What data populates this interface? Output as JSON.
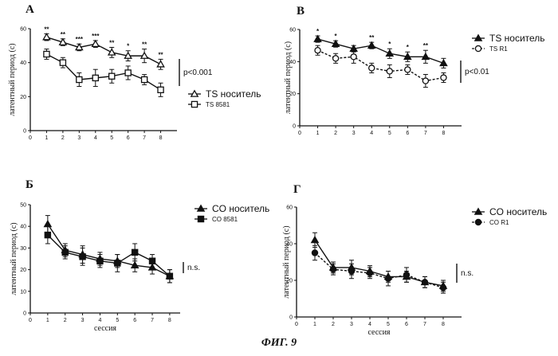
{
  "figure_caption": "ФИГ. 9",
  "chart_data": [
    {
      "id": "A",
      "type": "line",
      "panel_label": "A",
      "ylabel": "латентный период (с)",
      "xlabel": "",
      "xlim": [
        0,
        9
      ],
      "ylim": [
        0,
        60
      ],
      "x_ticks": [
        "0",
        "1",
        "2",
        "3",
        "4",
        "5",
        "6",
        "7",
        "8"
      ],
      "y_ticks": [
        "0",
        "20",
        "40",
        "60"
      ],
      "x": [
        1,
        2,
        3,
        4,
        5,
        6,
        7,
        8
      ],
      "series": [
        {
          "name": "TS носитель",
          "marker": "triangle-open",
          "dashed": false,
          "values": [
            55,
            52,
            49,
            51,
            46,
            44,
            44,
            39
          ],
          "errors": [
            2,
            2,
            2,
            2,
            3,
            3,
            4,
            3
          ]
        },
        {
          "name": "TS 8581",
          "marker": "square-open",
          "dashed": false,
          "values": [
            45,
            40,
            30,
            31,
            32,
            34,
            30,
            24
          ],
          "errors": [
            3,
            3,
            4,
            5,
            4,
            4,
            3,
            4
          ]
        }
      ],
      "significance": [
        "**",
        "**",
        "***",
        "***",
        "**",
        "*",
        "**",
        "**"
      ],
      "bracket_label": "p<0.001",
      "legend_position": "right"
    },
    {
      "id": "B",
      "type": "line",
      "panel_label": "B",
      "ylabel": "латентный период (с)",
      "xlabel": "",
      "xlim": [
        0,
        9
      ],
      "ylim": [
        0,
        60
      ],
      "x_ticks": [
        "0",
        "1",
        "2",
        "3",
        "4",
        "5",
        "6",
        "7",
        "8"
      ],
      "y_ticks": [
        "0",
        "20",
        "40",
        "60"
      ],
      "x": [
        1,
        2,
        3,
        4,
        5,
        6,
        7,
        8
      ],
      "series": [
        {
          "name": "TS носитель",
          "marker": "triangle-filled",
          "dashed": false,
          "values": [
            54,
            51,
            48,
            50,
            45,
            43,
            43,
            39
          ],
          "errors": [
            2,
            2,
            2,
            2,
            3,
            3,
            4,
            3
          ]
        },
        {
          "name": "TS R1",
          "marker": "circle-open",
          "dashed": true,
          "values": [
            47,
            42,
            43,
            36,
            34,
            35,
            28,
            30
          ],
          "errors": [
            3,
            3,
            4,
            3,
            4,
            3,
            4,
            3
          ]
        }
      ],
      "significance": [
        "*",
        "*",
        "",
        "**",
        "*",
        "*",
        "**",
        ""
      ],
      "bracket_label": "p<0.01",
      "legend_position": "top-right"
    },
    {
      "id": "Б",
      "type": "line",
      "panel_label": "Б",
      "ylabel": "латентный период (с)",
      "xlabel": "сессия",
      "xlim": [
        0,
        8.6
      ],
      "ylim": [
        0,
        50
      ],
      "x_ticks": [
        "0",
        "1",
        "2",
        "3",
        "4",
        "5",
        "6",
        "7",
        "8"
      ],
      "y_ticks": [
        "0",
        "10",
        "20",
        "30",
        "40",
        "50"
      ],
      "x": [
        1,
        2,
        3,
        4,
        5,
        6,
        7,
        8
      ],
      "series": [
        {
          "name": "CO носитель",
          "marker": "triangle-filled",
          "dashed": false,
          "values": [
            41,
            29,
            27,
            25,
            24,
            22,
            21,
            17
          ],
          "errors": [
            4,
            3,
            4,
            3,
            3,
            3,
            3,
            3
          ]
        },
        {
          "name": "CO 8581",
          "marker": "square-filled",
          "dashed": false,
          "values": [
            36,
            28,
            26,
            24,
            23,
            28,
            24,
            17
          ],
          "errors": [
            4,
            3,
            4,
            3,
            4,
            4,
            3,
            3
          ]
        }
      ],
      "significance": [],
      "bracket_label": "n.s.",
      "legend_position": "top-right"
    },
    {
      "id": "Г",
      "type": "line",
      "panel_label": "Г",
      "ylabel": "латентный период (с)",
      "xlabel": "сессия",
      "xlim": [
        0,
        9
      ],
      "ylim": [
        0,
        60
      ],
      "x_ticks": [
        "0",
        "1",
        "2",
        "3",
        "4",
        "5",
        "6",
        "7",
        "8"
      ],
      "y_ticks": [
        "0",
        "20",
        "40",
        "60"
      ],
      "x": [
        1,
        2,
        3,
        4,
        5,
        6,
        7,
        8
      ],
      "series": [
        {
          "name": "CO носитель",
          "marker": "triangle-filled",
          "dashed": false,
          "values": [
            42,
            27,
            27,
            25,
            22,
            22,
            19,
            17
          ],
          "errors": [
            4,
            3,
            4,
            3,
            3,
            3,
            3,
            3
          ]
        },
        {
          "name": "CO R1",
          "marker": "circle-filled",
          "dashed": true,
          "values": [
            35,
            26,
            25,
            24,
            21,
            23,
            19,
            16
          ],
          "errors": [
            4,
            3,
            4,
            3,
            4,
            4,
            3,
            3
          ]
        }
      ],
      "significance": [],
      "bracket_label": "n.s.",
      "legend_position": "top-right"
    }
  ]
}
